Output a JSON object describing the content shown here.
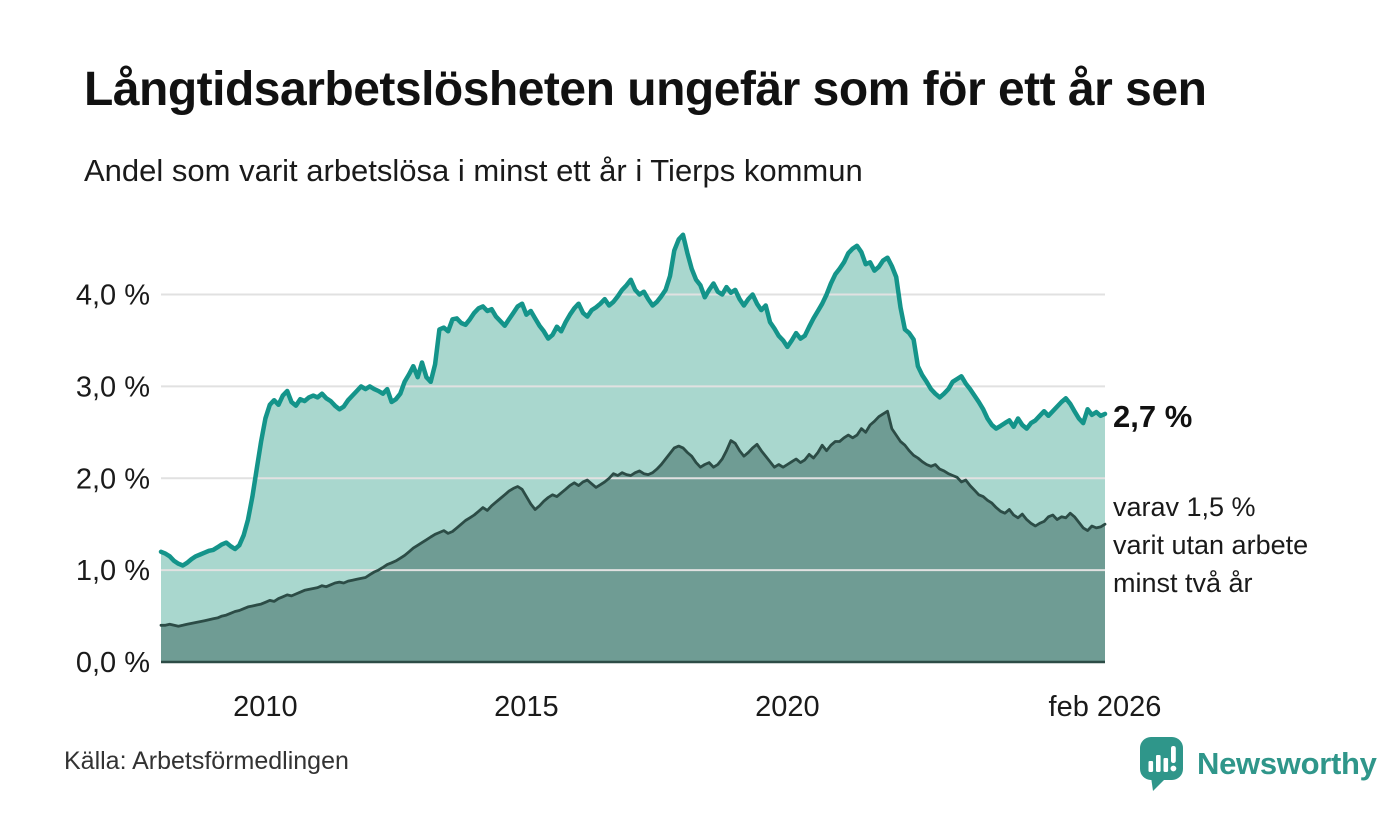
{
  "header": {
    "title": "Långtidsarbetslösheten ungefär som för ett år sen",
    "subtitle": "Andel som varit arbetslösa i minst ett år i Tierps kommun"
  },
  "chart_data": {
    "type": "area",
    "x_start": "2008-01",
    "x_end": "2026-02",
    "x_frequency": "monthly",
    "ylim": [
      0,
      4.8
    ],
    "unit": "%",
    "grid": "horizontal",
    "y_tick_labels": [
      "0,0 %",
      "1,0 %",
      "2,0 %",
      "3,0 %",
      "4,0 %"
    ],
    "x_ticks": [
      {
        "label": "2010",
        "month_index": 24
      },
      {
        "label": "2015",
        "month_index": 84
      },
      {
        "label": "2020",
        "month_index": 144
      },
      {
        "label": "feb 2026",
        "month_index": 217
      }
    ],
    "colors": {
      "line_one_year": "#14948A",
      "fill_one_year": "#A9D7CE",
      "line_two_years": "#2C4C46",
      "fill_two_years": "#6F9C94",
      "gridline": "#E1E1E1",
      "axis": "#2C4C46"
    },
    "series": [
      {
        "name": "Arbetslösa minst ett år",
        "color": "#14948A",
        "fill": "#A9D7CE",
        "values": [
          1.2,
          1.18,
          1.15,
          1.1,
          1.07,
          1.05,
          1.08,
          1.12,
          1.15,
          1.17,
          1.19,
          1.21,
          1.22,
          1.25,
          1.28,
          1.3,
          1.26,
          1.23,
          1.27,
          1.38,
          1.55,
          1.8,
          2.1,
          2.4,
          2.65,
          2.8,
          2.85,
          2.8,
          2.9,
          2.95,
          2.83,
          2.79,
          2.86,
          2.84,
          2.88,
          2.9,
          2.88,
          2.92,
          2.87,
          2.84,
          2.79,
          2.75,
          2.78,
          2.85,
          2.9,
          2.95,
          3.0,
          2.97,
          3.0,
          2.97,
          2.95,
          2.92,
          2.97,
          2.83,
          2.86,
          2.92,
          3.05,
          3.13,
          3.22,
          3.1,
          3.26,
          3.1,
          3.05,
          3.24,
          3.62,
          3.64,
          3.6,
          3.73,
          3.74,
          3.69,
          3.67,
          3.73,
          3.8,
          3.85,
          3.87,
          3.82,
          3.84,
          3.76,
          3.71,
          3.66,
          3.73,
          3.8,
          3.87,
          3.9,
          3.78,
          3.82,
          3.74,
          3.66,
          3.6,
          3.52,
          3.56,
          3.65,
          3.6,
          3.7,
          3.78,
          3.85,
          3.9,
          3.8,
          3.76,
          3.83,
          3.86,
          3.9,
          3.95,
          3.88,
          3.92,
          3.98,
          4.05,
          4.1,
          4.16,
          4.05,
          4.0,
          4.03,
          3.95,
          3.88,
          3.92,
          3.98,
          4.05,
          4.2,
          4.48,
          4.6,
          4.65,
          4.45,
          4.28,
          4.16,
          4.1,
          3.97,
          4.05,
          4.12,
          4.03,
          4.0,
          4.08,
          4.02,
          4.05,
          3.95,
          3.88,
          3.95,
          4.0,
          3.9,
          3.83,
          3.88,
          3.7,
          3.63,
          3.55,
          3.5,
          3.43,
          3.5,
          3.58,
          3.52,
          3.55,
          3.65,
          3.74,
          3.82,
          3.9,
          4.0,
          4.12,
          4.22,
          4.28,
          4.35,
          4.45,
          4.5,
          4.53,
          4.46,
          4.33,
          4.35,
          4.26,
          4.3,
          4.37,
          4.4,
          4.31,
          4.19,
          3.86,
          3.62,
          3.58,
          3.51,
          3.22,
          3.12,
          3.05,
          2.97,
          2.92,
          2.88,
          2.92,
          2.97,
          3.05,
          3.08,
          3.11,
          3.03,
          2.97,
          2.9,
          2.83,
          2.75,
          2.65,
          2.58,
          2.54,
          2.57,
          2.6,
          2.63,
          2.56,
          2.65,
          2.58,
          2.54,
          2.6,
          2.63,
          2.68,
          2.73,
          2.68,
          2.73,
          2.78,
          2.83,
          2.87,
          2.81,
          2.73,
          2.65,
          2.6,
          2.75,
          2.69,
          2.72,
          2.68,
          2.7
        ]
      },
      {
        "name": "Arbetslösa minst två år",
        "color": "#2C4C46",
        "fill": "#6F9C94",
        "values": [
          0.4,
          0.4,
          0.41,
          0.4,
          0.39,
          0.4,
          0.41,
          0.42,
          0.43,
          0.44,
          0.45,
          0.46,
          0.47,
          0.48,
          0.5,
          0.51,
          0.53,
          0.55,
          0.56,
          0.58,
          0.6,
          0.61,
          0.62,
          0.63,
          0.65,
          0.67,
          0.66,
          0.69,
          0.71,
          0.73,
          0.72,
          0.74,
          0.76,
          0.78,
          0.79,
          0.8,
          0.81,
          0.83,
          0.82,
          0.84,
          0.86,
          0.87,
          0.86,
          0.88,
          0.89,
          0.9,
          0.91,
          0.92,
          0.95,
          0.98,
          1.0,
          1.03,
          1.06,
          1.08,
          1.1,
          1.13,
          1.16,
          1.2,
          1.24,
          1.27,
          1.3,
          1.33,
          1.36,
          1.39,
          1.41,
          1.43,
          1.4,
          1.42,
          1.46,
          1.5,
          1.54,
          1.57,
          1.6,
          1.64,
          1.68,
          1.65,
          1.7,
          1.74,
          1.78,
          1.82,
          1.86,
          1.89,
          1.91,
          1.88,
          1.8,
          1.72,
          1.66,
          1.7,
          1.75,
          1.79,
          1.82,
          1.8,
          1.84,
          1.88,
          1.92,
          1.95,
          1.92,
          1.96,
          1.98,
          1.94,
          1.9,
          1.93,
          1.96,
          2.0,
          2.05,
          2.03,
          2.06,
          2.04,
          2.03,
          2.06,
          2.08,
          2.05,
          2.04,
          2.06,
          2.1,
          2.15,
          2.21,
          2.27,
          2.33,
          2.35,
          2.33,
          2.28,
          2.24,
          2.17,
          2.12,
          2.15,
          2.17,
          2.12,
          2.15,
          2.21,
          2.3,
          2.41,
          2.38,
          2.3,
          2.24,
          2.28,
          2.33,
          2.37,
          2.3,
          2.24,
          2.18,
          2.12,
          2.15,
          2.12,
          2.15,
          2.18,
          2.21,
          2.17,
          2.2,
          2.26,
          2.22,
          2.28,
          2.36,
          2.3,
          2.36,
          2.4,
          2.4,
          2.44,
          2.47,
          2.44,
          2.47,
          2.54,
          2.5,
          2.58,
          2.62,
          2.67,
          2.7,
          2.73,
          2.54,
          2.47,
          2.4,
          2.36,
          2.3,
          2.25,
          2.22,
          2.18,
          2.15,
          2.13,
          2.15,
          2.1,
          2.08,
          2.05,
          2.03,
          2.01,
          1.96,
          1.98,
          1.92,
          1.87,
          1.82,
          1.8,
          1.76,
          1.73,
          1.68,
          1.64,
          1.62,
          1.66,
          1.6,
          1.57,
          1.61,
          1.55,
          1.51,
          1.48,
          1.51,
          1.53,
          1.58,
          1.6,
          1.55,
          1.58,
          1.57,
          1.62,
          1.58,
          1.52,
          1.46,
          1.43,
          1.48,
          1.46,
          1.47,
          1.5
        ]
      }
    ],
    "annotations": {
      "last_value_label": "2,7 %",
      "secondary_label_lines": [
        "varav 1,5 %",
        "varit utan arbete",
        "minst två år"
      ]
    }
  },
  "footer": {
    "source": "Källa: Arbetsförmedlingen",
    "brand": "Newsworthy"
  }
}
